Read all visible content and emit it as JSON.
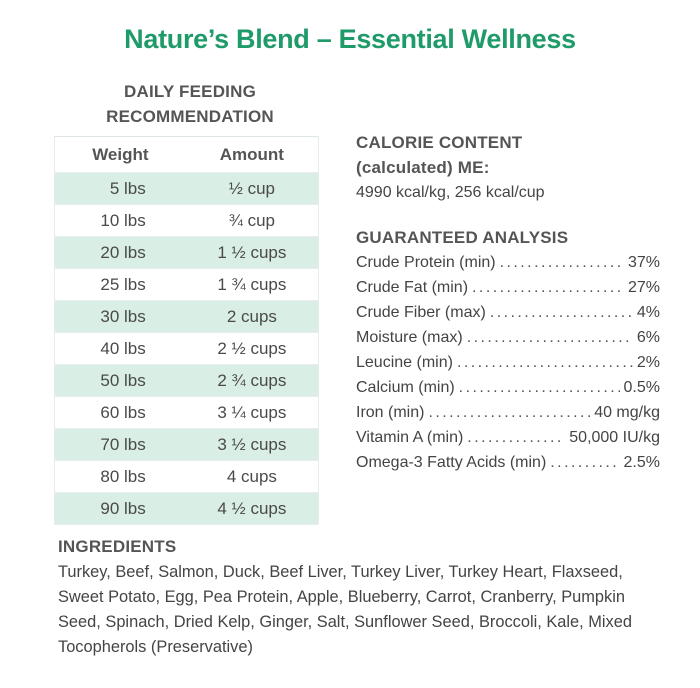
{
  "title": "Nature’s Blend – Essential Wellness",
  "feeding": {
    "heading_line1": "DAILY FEEDING",
    "heading_line2": "RECOMMENDATION",
    "col_weight": "Weight",
    "col_amount": "Amount",
    "rows": [
      {
        "weight": "5 lbs",
        "amount": "½ cup"
      },
      {
        "weight": "10 lbs",
        "amount": "¾ cup"
      },
      {
        "weight": "20 lbs",
        "amount": "1 ½ cups"
      },
      {
        "weight": "25 lbs",
        "amount": "1 ¾ cups"
      },
      {
        "weight": "30 lbs",
        "amount": "2 cups"
      },
      {
        "weight": "40 lbs",
        "amount": "2 ½ cups"
      },
      {
        "weight": "50 lbs",
        "amount": "2 ¾ cups"
      },
      {
        "weight": "60 lbs",
        "amount": "3 ¼ cups"
      },
      {
        "weight": "70 lbs",
        "amount": "3 ½ cups"
      },
      {
        "weight": "80 lbs",
        "amount": "4 cups"
      },
      {
        "weight": "90 lbs",
        "amount": "4 ½ cups"
      }
    ]
  },
  "calorie": {
    "heading_line1": "CALORIE CONTENT",
    "heading_line2": "(calculated) ME:",
    "value": "4990 kcal/kg, 256 kcal/cup"
  },
  "analysis": {
    "heading": "GUARANTEED ANALYSIS",
    "rows": [
      {
        "name": "Crude Protein (min)",
        "value": "37%"
      },
      {
        "name": "Crude Fat (min)",
        "value": "27%"
      },
      {
        "name": "Crude Fiber (max)",
        "value": "4%"
      },
      {
        "name": "Moisture (max)",
        "value": "6%"
      },
      {
        "name": "Leucine (min)",
        "value": "2%"
      },
      {
        "name": "Calcium (min)",
        "value": "0.5%"
      },
      {
        "name": "Iron (min)",
        "value": "40 mg/kg"
      },
      {
        "name": "Vitamin A (min)",
        "value": "50,000 IU/kg"
      },
      {
        "name": "Omega-3 Fatty Acids (min)",
        "value": "2.5%"
      }
    ]
  },
  "ingredients": {
    "heading": "INGREDIENTS",
    "text": "Turkey, Beef, Salmon, Duck, Beef Liver, Turkey Liver, Turkey Heart, Flaxseed, Sweet Potato, Egg, Pea Protein, Apple, Blueberry, Carrot, Cranberry, Pumpkin Seed, Spinach, Dried Kelp, Ginger, Salt, Sunflower Seed, Broccoli, Kale, Mixed Tocopherols (Preservative)"
  },
  "colors": {
    "title_green": "#1f9a69",
    "row_shade": "#d9eee4"
  }
}
